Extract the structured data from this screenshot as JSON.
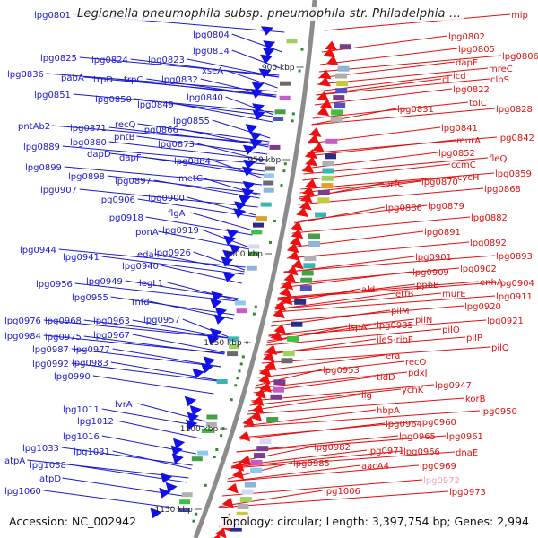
{
  "title": "Legionella pneumophila subsp. pneumophila str. Philadelphia ...",
  "accession": "Accession: NC_002942",
  "topology": "Topology: circular; Length: 3,397,754 bp; Genes: 2,994",
  "colors": {
    "forward_label": "#1a1ad0",
    "reverse_label": "#e01010",
    "pink_label": "#f0a0c0",
    "backbone": "#8c8c8c",
    "forward_arrow": "#1010e8",
    "reverse_arrow": "#ee1010"
  },
  "scale_ticks": [
    {
      "label": "900 kbp"
    },
    {
      "label": "950 kbp"
    },
    {
      "label": "1000 kbp"
    },
    {
      "label": "1050 kbp"
    },
    {
      "label": "1100 kbp"
    },
    {
      "label": "1150 kbp"
    }
  ],
  "forward_genes": [
    "lpg0801",
    "lpg0804",
    "lpg0814",
    "xseA",
    "lpg0825",
    "lpg0824",
    "lpg0823",
    "lpg0836",
    "pabA",
    "trpD",
    "trpC",
    "lpg0832",
    "lpg0851",
    "lpg0850",
    "lpg0840",
    "lpg0849",
    "pntAb2",
    "lpg0871",
    "recQ",
    "lpg0855",
    "lpg0866",
    "lpg0889",
    "lpg0880",
    "pntB",
    "lpg0873",
    "dapD",
    "dapF",
    "lpg0884",
    "lpg0899",
    "lpg0898",
    "lpg0897",
    "metC",
    "lpg0907",
    "lpg0906",
    "lpg0900",
    "flgA",
    "lpg0918",
    "ponA",
    "lpg0919",
    "lpg0944",
    "eda",
    "lpg0926",
    "lpg0941",
    "lpg0940",
    "lpg0956",
    "lpg0949",
    "legL1",
    "lpg0955",
    "mfd",
    "lpg0976",
    "lpg0968",
    "lpg0963",
    "lpg0957",
    "lpg0984",
    "lpg0975",
    "lpg0967",
    "lpg0987",
    "lpg0977",
    "lpg0992",
    "lpg0983",
    "lpg0990",
    "lvrA",
    "lpg1011",
    "lpg1012",
    "lpg1016",
    "lpg1033",
    "lpg1031",
    "atpA",
    "lpg1038",
    "atpD",
    "lpg1060"
  ],
  "reverse_genes": [
    "mip",
    "lpg0802",
    "lpg0805",
    "lpg0806",
    "dapE",
    "mreC",
    "icd",
    "clpS",
    "cl",
    "lpg0822",
    "tolC",
    "lpg0828",
    "lpg0831",
    "lpg0841",
    "murA",
    "lpg0842",
    "lpg0852",
    "fleQ",
    "ccmC",
    "lpg0859",
    "cycH",
    "prfC",
    "lpg0870",
    "lpg0868",
    "lpg0886",
    "lpg0879",
    "lpg0882",
    "lpg0891",
    "lpg0892",
    "lpg0893",
    "lpg0901",
    "lpg0902",
    "lpg0909",
    "enhA",
    "lpg0904",
    "ppbB",
    "ald",
    "etfB",
    "murE",
    "lpg0911",
    "lpg0920",
    "pilM",
    "lpg0921",
    "pilN",
    "lspA",
    "lpg0935",
    "pilO",
    "ileS-ribF",
    "pilP",
    "pilQ",
    "era",
    "recO",
    "lpg0953",
    "pdxJ",
    "tldD",
    "lpg0947",
    "ychK",
    "korB",
    "lig",
    "lpg0950",
    "hbpA",
    "lpg0964",
    "lpg0960",
    "lpg0965",
    "lpg0961",
    "lpg0982",
    "lpg0971",
    "lpg0966",
    "dnaE",
    "aacA4",
    "lpg0969",
    "lpg0985",
    "lpg0972",
    "lpg0973",
    "lpg1006"
  ]
}
